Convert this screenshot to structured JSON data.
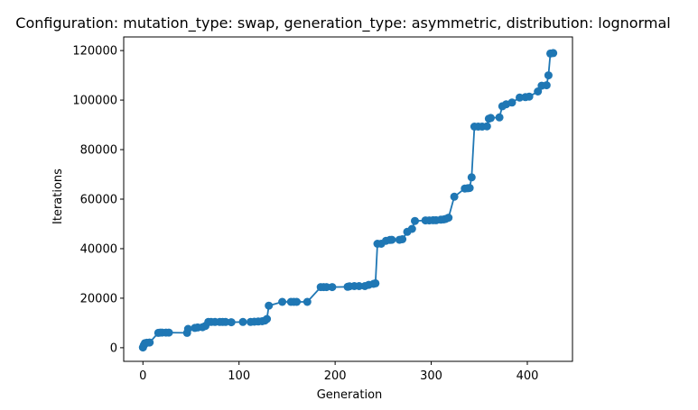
{
  "chart_data": {
    "type": "line",
    "title": "Configuration: mutation_type: swap, generation_type: asymmetric, distribution: lognormal",
    "xlabel": "Generation",
    "ylabel": "Iterations",
    "xlim": [
      -20,
      447
    ],
    "ylim": [
      -5500,
      125500
    ],
    "xticks": [
      0,
      100,
      200,
      300,
      400
    ],
    "yticks": [
      0,
      20000,
      40000,
      60000,
      80000,
      100000,
      120000
    ],
    "grid": false,
    "markers": true,
    "color": "#1f77b4",
    "series": [
      {
        "x": [
          0,
          1,
          2,
          4,
          7,
          16,
          18,
          20,
          24,
          27,
          46,
          47,
          54,
          57,
          62,
          65,
          68,
          71,
          75,
          80,
          83,
          86,
          92,
          104,
          112,
          116,
          120,
          124,
          127,
          129,
          131,
          145,
          154,
          157,
          160,
          171,
          185,
          188,
          191,
          197,
          213,
          215,
          220,
          225,
          231,
          235,
          240,
          242,
          244,
          248,
          253,
          257,
          259,
          267,
          270,
          275,
          280,
          283,
          294,
          298,
          302,
          305,
          310,
          313,
          315,
          318,
          324,
          335,
          338,
          340,
          342,
          345,
          349,
          353,
          358,
          360,
          362,
          371,
          374,
          378,
          384,
          392,
          398,
          402,
          411,
          415,
          420,
          422,
          424,
          427
        ],
        "y": [
          100,
          1000,
          1800,
          2000,
          2100,
          6000,
          6100,
          6100,
          6100,
          6100,
          6000,
          7600,
          8000,
          8200,
          8300,
          8800,
          10400,
          10400,
          10400,
          10400,
          10400,
          10400,
          10300,
          10400,
          10400,
          10500,
          10600,
          10700,
          11000,
          11600,
          17000,
          18500,
          18500,
          18500,
          18500,
          18500,
          24500,
          24500,
          24500,
          24500,
          24600,
          24800,
          24900,
          24900,
          24900,
          25400,
          25800,
          26000,
          42000,
          42000,
          43200,
          43500,
          43600,
          43600,
          43800,
          46800,
          48000,
          51200,
          51400,
          51400,
          51500,
          51500,
          51700,
          51800,
          52000,
          52500,
          61000,
          64300,
          64400,
          64500,
          68800,
          89300,
          89300,
          89300,
          89400,
          92500,
          92800,
          93000,
          97500,
          98300,
          99000,
          101000,
          101200,
          101400,
          103500,
          105800,
          106000,
          110000,
          118800,
          119000
        ]
      }
    ]
  }
}
